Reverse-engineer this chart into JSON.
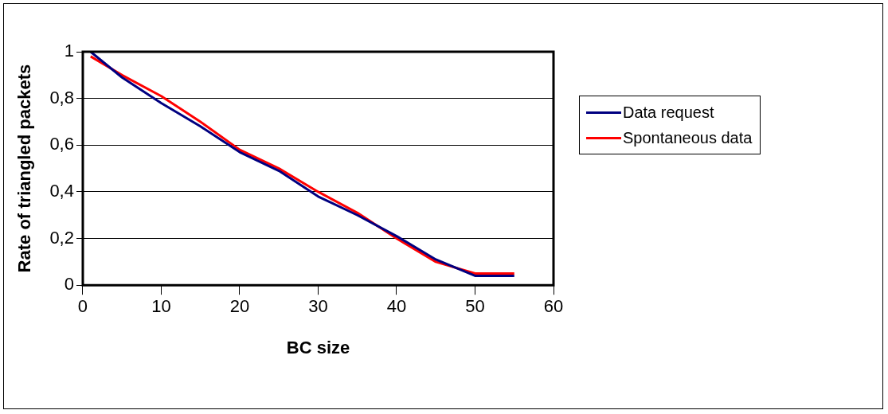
{
  "chart_data": {
    "type": "line",
    "xlabel": "BC size",
    "ylabel": "Rate of triangled packets",
    "x": [
      1,
      5,
      10,
      15,
      20,
      25,
      30,
      35,
      40,
      45,
      50,
      55
    ],
    "series": [
      {
        "name": "Data request",
        "color": "#000080",
        "values": [
          1.0,
          0.89,
          0.78,
          0.68,
          0.57,
          0.49,
          0.38,
          0.3,
          0.21,
          0.11,
          0.04,
          0.04
        ]
      },
      {
        "name": "Spontaneous data",
        "color": "#ff0000",
        "values": [
          0.98,
          0.9,
          0.81,
          0.7,
          0.58,
          0.5,
          0.4,
          0.31,
          0.2,
          0.1,
          0.05,
          0.05
        ]
      }
    ],
    "xlim": [
      0,
      60
    ],
    "xticks": [
      0,
      10,
      20,
      30,
      40,
      50,
      60
    ],
    "ylim": [
      0,
      1
    ],
    "yticks": [
      0,
      {
        "value": 0.2,
        "label": "0,2"
      },
      {
        "value": 0.4,
        "label": "0,4"
      },
      {
        "value": 0.6,
        "label": "0,6"
      },
      {
        "value": 0.8,
        "label": "0,8"
      },
      1
    ],
    "grid": "y",
    "legend": "right",
    "marker": "none",
    "line_style": "solid"
  }
}
